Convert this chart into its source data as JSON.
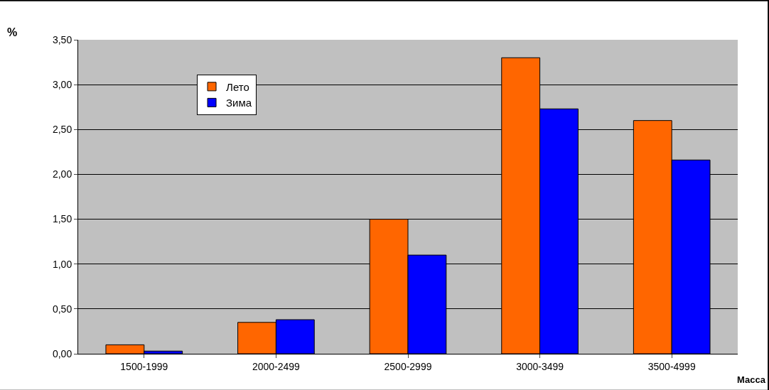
{
  "chart_data": {
    "type": "bar",
    "xlabel": "Масса",
    "ylabel": "%",
    "categories": [
      "1500-1999",
      "2000-2499",
      "2500-2999",
      "3000-3499",
      "3500-4999"
    ],
    "series": [
      {
        "name": "Лето",
        "color": "#ff6600",
        "values": [
          0.1,
          0.35,
          1.5,
          3.3,
          2.6
        ]
      },
      {
        "name": "Зима",
        "color": "#0000ff",
        "values": [
          0.03,
          0.38,
          1.1,
          2.73,
          2.16
        ]
      }
    ],
    "ylim": [
      0,
      3.5
    ],
    "yticks": [
      {
        "value": 0,
        "label": "0,00"
      },
      {
        "value": 0.5,
        "label": "0,50"
      },
      {
        "value": 1,
        "label": "1,00"
      },
      {
        "value": 1.5,
        "label": "1,50"
      },
      {
        "value": 2,
        "label": "2,00"
      },
      {
        "value": 2.5,
        "label": "2,50"
      },
      {
        "value": 3,
        "label": "3,00"
      },
      {
        "value": 3.5,
        "label": "3,50"
      }
    ],
    "grid": "y",
    "legend": "top left"
  }
}
